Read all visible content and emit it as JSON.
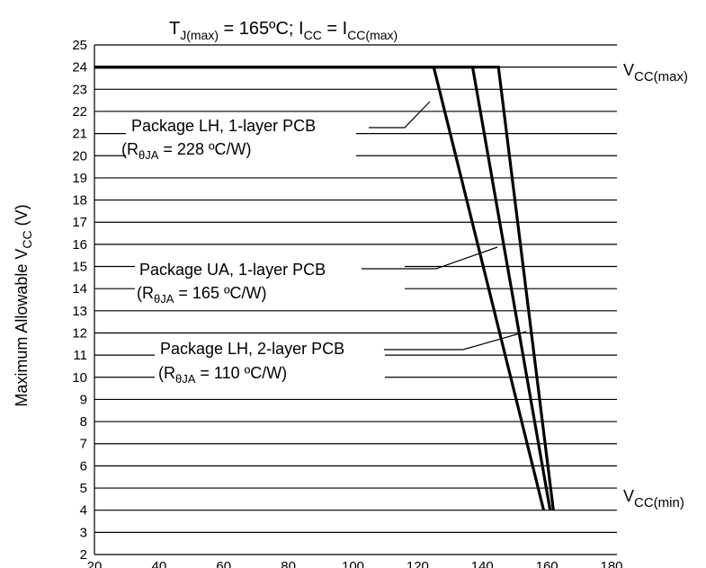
{
  "chart_data": {
    "type": "line",
    "title": {
      "pre": "T",
      "pre_sub": "J(max)",
      "mid": " = 165ºC; I",
      "mid_sub": "CC",
      "post": " =  I",
      "post_sub": "CC(max)"
    },
    "ylabel": {
      "main": "Maximum Allowable V",
      "sub": "CC",
      "unit": " (V)"
    },
    "xlabel": "",
    "xlim": [
      20,
      180
    ],
    "ylim": [
      2,
      25
    ],
    "x_ticks": [
      "20",
      "40",
      "60",
      "80",
      "100",
      "120",
      "140",
      "160",
      "180"
    ],
    "y_ticks": [
      "2",
      "3",
      "4",
      "5",
      "6",
      "7",
      "8",
      "9",
      "10",
      "11",
      "12",
      "13",
      "14",
      "15",
      "16",
      "17",
      "18",
      "19",
      "20",
      "21",
      "22",
      "23",
      "24",
      "25"
    ],
    "grid": "horizontal",
    "series": [
      {
        "id": "lh1",
        "x": [
          20,
          125,
          159
        ],
        "y": [
          24,
          24,
          4
        ]
      },
      {
        "id": "ua1",
        "x": [
          20,
          137,
          161
        ],
        "y": [
          24,
          24,
          4
        ]
      },
      {
        "id": "lh2",
        "x": [
          20,
          145,
          162
        ],
        "y": [
          24,
          24,
          4
        ]
      }
    ],
    "annotations": {
      "vcc_max": {
        "main": "V",
        "sub": "CC(max)"
      },
      "vcc_min": {
        "main": "V",
        "sub": "CC(min)"
      },
      "labels": [
        {
          "id": "lh1",
          "line1": "Package LH, 1-layer PCB",
          "r_pre": "(R",
          "r_sub": "θJA",
          "r_post": " = 228 ºC/W)"
        },
        {
          "id": "ua1",
          "line1": "Package UA, 1-layer PCB",
          "r_pre": "(R",
          "r_sub": "θJA",
          "r_post": " = 165 ºC/W)"
        },
        {
          "id": "lh2",
          "line1": "Package LH, 2-layer PCB",
          "r_pre": "(R",
          "r_sub": "θJA",
          "r_post": " = 110 ºC/W)"
        }
      ]
    }
  }
}
